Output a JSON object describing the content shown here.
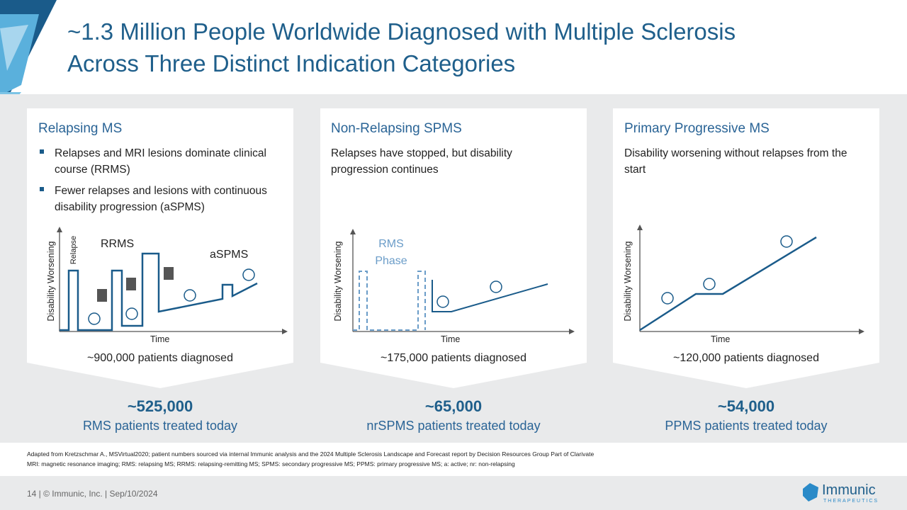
{
  "header": {
    "title_lines": [
      "~1.3 Million People Worldwide Diagnosed with Multiple Sclerosis",
      "Across Three Distinct Indication Categories"
    ]
  },
  "panels": [
    {
      "title": "Relapsing MS",
      "bullets": [
        "Relapses and MRI lesions dominate clinical course (RRMS)",
        "Fewer relapses and lesions with continuous disability progression (aSPMS)"
      ],
      "y_axis": "Disability Worsening",
      "x_axis": "Time",
      "labels": [
        "Relapse",
        "RRMS",
        "aSPMS"
      ],
      "diagnosed": "~900,000 patients diagnosed",
      "treated_count": "~525,000",
      "treated_label": "RMS patients treated today"
    },
    {
      "title": "Non-Relapsing SPMS",
      "description": "Relapses have stopped, but disability progression continues",
      "y_axis": "Disability Worsening",
      "x_axis": "Time",
      "labels": [
        "RMS",
        "Phase"
      ],
      "diagnosed": "~175,000 patients diagnosed",
      "treated_count": "~65,000",
      "treated_label": "nrSPMS patients treated today"
    },
    {
      "title": "Primary Progressive MS",
      "description": "Disability worsening without relapses from the start",
      "y_axis": "Disability Worsening",
      "x_axis": "Time",
      "diagnosed": "~120,000 patients diagnosed",
      "treated_count": "~54,000",
      "treated_label": "PPMS patients treated today"
    }
  ],
  "footnotes": [
    "Adapted from Kretzschmar A., MSVirtual2020; patient numbers sourced via internal Immunic analysis and the 2024 Multiple Sclerosis Landscape and Forecast report by Decision Resources Group Part of Clarivate",
    "MRI: magnetic resonance imaging; RMS: relapsing MS; RRMS: relapsing-remitting MS; SPMS: secondary progressive MS; PPMS: primary progressive MS; a: active; nr: non-relapsing"
  ],
  "footer": {
    "text": "14  |  © Immunic, Inc.  | Sep/10/2024",
    "logo": "Immunic",
    "logo_sub": "THERAPEUTICS"
  }
}
